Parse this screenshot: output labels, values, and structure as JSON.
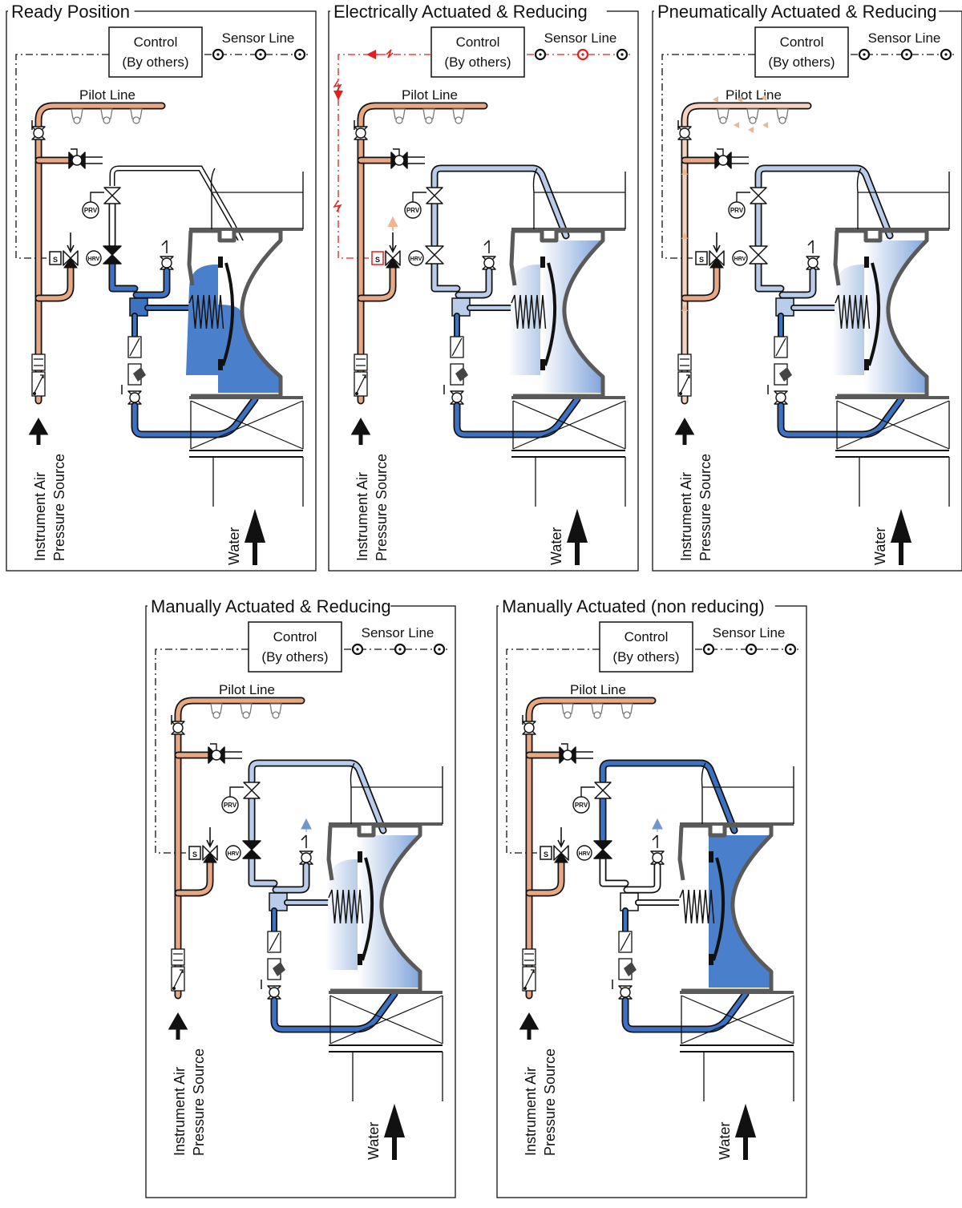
{
  "panels": [
    {
      "title": "Ready Position",
      "state": "ready"
    },
    {
      "title": "Electrically Actuated & Reducing",
      "state": "electric"
    },
    {
      "title": "Pneumatically Actuated & Reducing",
      "state": "pneumatic"
    },
    {
      "title": "Manually Actuated & Reducing",
      "state": "manual_reducing"
    },
    {
      "title": "Manually Actuated (non reducing)",
      "state": "manual_nonreducing"
    }
  ],
  "labels": {
    "control_line1": "Control",
    "control_line2": "(By others)",
    "sensor_line": "Sensor Line",
    "pilot_line": "Pilot Line",
    "air_line1": "Instrument Air",
    "air_line2": "Pressure Source",
    "water": "Water",
    "prv": "PRV",
    "hrv": "HRV",
    "solenoid": "S"
  },
  "colors": {
    "air": "#E8A882",
    "air_light": "#F5D3BE",
    "water": "#3D72C2",
    "water_mid": "#6F96CF",
    "water_light": "#B9CDEA",
    "fill_dark": "#4A7FCC",
    "signal": "#E02020",
    "line": "#111111",
    "body": "#5A5A5A"
  }
}
